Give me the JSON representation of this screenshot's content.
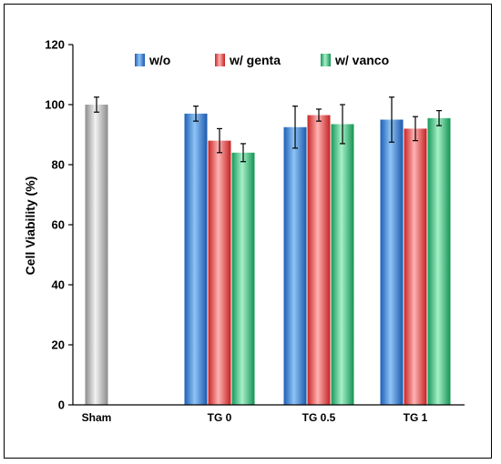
{
  "chart_data": {
    "type": "bar",
    "title": "",
    "ylabel": "Cell Viability (%)",
    "xlabel": "",
    "ylim": [
      0,
      120
    ],
    "yticks": [
      "0",
      "20",
      "40",
      "60",
      "80",
      "100",
      "120"
    ],
    "legend_position": "top-center",
    "groups": [
      {
        "label": "Sham",
        "bars": [
          {
            "series": "Sham",
            "value": 100,
            "error": 2.5
          }
        ]
      },
      {
        "label": "TG 0",
        "bars": [
          {
            "series": "w/o",
            "value": 97,
            "error": 2.5
          },
          {
            "series": "w/ genta",
            "value": 88,
            "error": 4
          },
          {
            "series": "w/ vanco",
            "value": 84,
            "error": 3
          }
        ]
      },
      {
        "label": "TG 0.5",
        "bars": [
          {
            "series": "w/o",
            "value": 92.5,
            "error": 7
          },
          {
            "series": "w/ genta",
            "value": 96.5,
            "error": 2
          },
          {
            "series": "w/ vanco",
            "value": 93.5,
            "error": 6.5
          }
        ]
      },
      {
        "label": "TG 1",
        "bars": [
          {
            "series": "w/o",
            "value": 95,
            "error": 7.5
          },
          {
            "series": "w/ genta",
            "value": 92,
            "error": 4
          },
          {
            "series": "w/ vanco",
            "value": 95.5,
            "error": 2.5
          }
        ]
      }
    ],
    "series": [
      {
        "name": "w/o",
        "color": "#3a7bd5"
      },
      {
        "name": "w/ genta",
        "color": "#e23b3b"
      },
      {
        "name": "w/ vanco",
        "color": "#2bb673"
      }
    ],
    "sham_color": "#9a9a9a"
  }
}
